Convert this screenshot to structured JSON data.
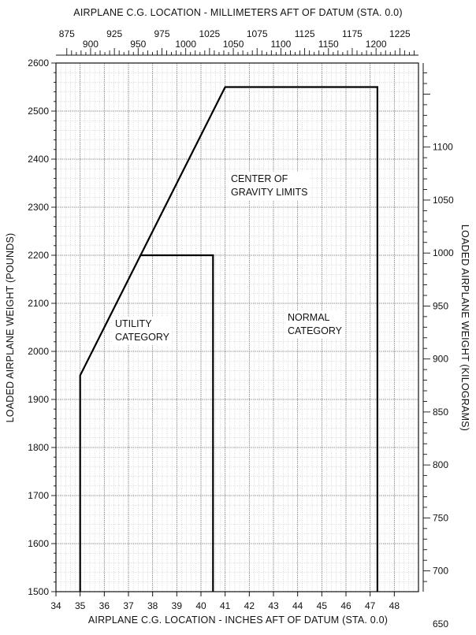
{
  "chart_data": {
    "type": "line",
    "title": "",
    "top_axis_label": "AIRPLANE C.G. LOCATION - MILLIMETERS AFT OF DATUM (STA. 0.0)",
    "bottom_axis_label": "AIRPLANE C.G. LOCATION - INCHES AFT OF DATUM (STA. 0.0)",
    "left_axis_label": "LOADED AIRPLANE WEIGHT (POUNDS)",
    "right_axis_label": "LOADED AIRPLANE WEIGHT (KILOGRAMS)",
    "x_inches": {
      "min": 34,
      "max": 49,
      "ticks": [
        "34",
        "35",
        "36",
        "37",
        "38",
        "39",
        "40",
        "41",
        "42",
        "43",
        "44",
        "45",
        "46",
        "47",
        "48"
      ]
    },
    "x_mm": {
      "ticks": [
        "875",
        "900",
        "925",
        "950",
        "975",
        "1000",
        "1025",
        "1050",
        "1075",
        "1100",
        "1125",
        "1150",
        "1175",
        "1200",
        "1225"
      ]
    },
    "y_pounds": {
      "min": 1500,
      "max": 2600,
      "ticks": [
        "1500",
        "1600",
        "1700",
        "1800",
        "1900",
        "2000",
        "2100",
        "2200",
        "2300",
        "2400",
        "2500",
        "2600"
      ]
    },
    "y_kg": {
      "ticks": [
        "650",
        "700",
        "750",
        "800",
        "850",
        "900",
        "950",
        "1000",
        "1050",
        "1100"
      ]
    },
    "grid": true,
    "series": [
      {
        "name": "",
        "points": [
          [
            35.0,
            1500
          ],
          [
            35.0,
            1950
          ],
          [
            41.0,
            2550
          ],
          [
            47.3,
            2550
          ],
          [
            47.3,
            1500
          ]
        ]
      },
      {
        "name": "",
        "points": [
          [
            37.5,
            2200
          ],
          [
            40.5,
            2200
          ],
          [
            40.5,
            1500
          ]
        ]
      }
    ],
    "annotations": {
      "cg_limits": [
        "CENTER OF",
        "GRAVITY LIMITS"
      ],
      "utility": [
        "UTILITY",
        "CATEGORY"
      ],
      "normal": [
        "NORMAL",
        "CATEGORY"
      ]
    }
  }
}
